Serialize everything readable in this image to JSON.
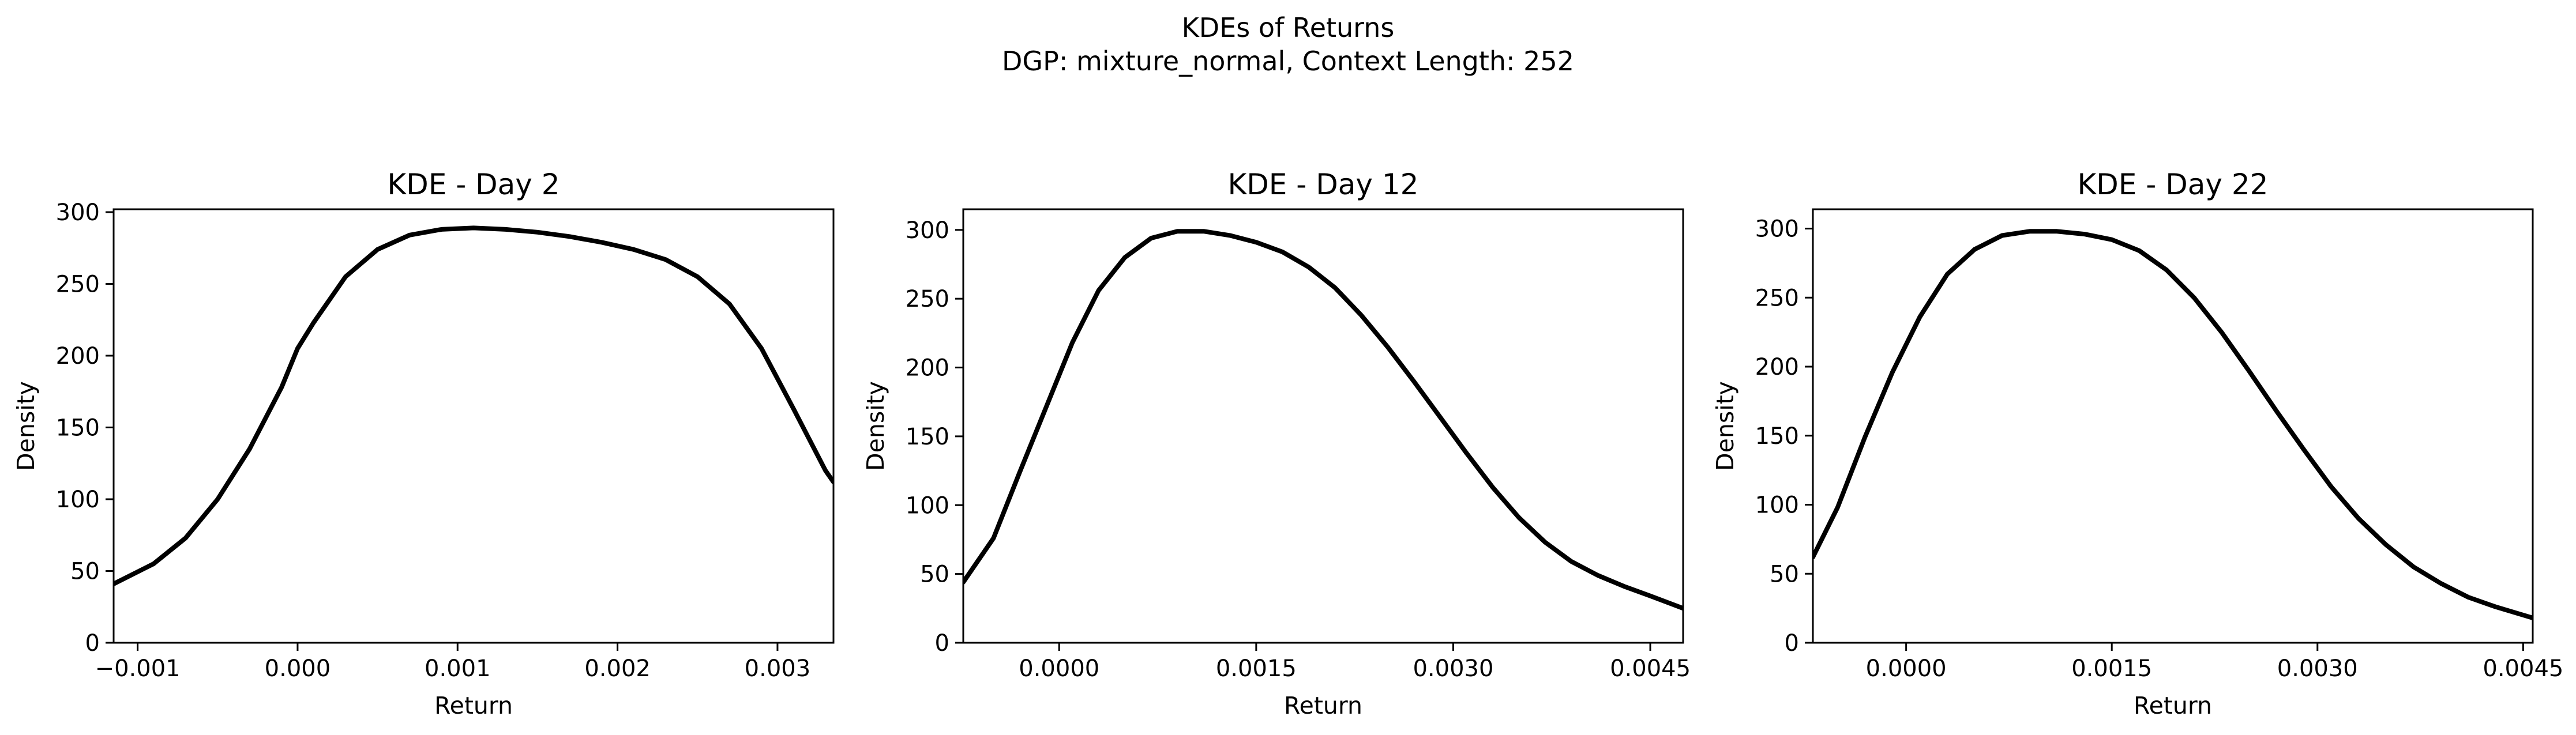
{
  "figure": {
    "title_line1": "KDEs of Returns",
    "title_line2": "DGP: mixture_normal, Context Length: 252"
  },
  "chart_data": [
    {
      "type": "line",
      "title": "KDE - Day 2",
      "xlabel": "Return",
      "ylabel": "Density",
      "xlim": [
        -0.00115,
        0.00335
      ],
      "ylim": [
        0,
        302
      ],
      "xticks": [
        -0.001,
        0.0,
        0.001,
        0.002,
        0.003
      ],
      "xtick_labels": [
        "−0.001",
        "0.000",
        "0.001",
        "0.002",
        "0.003"
      ],
      "yticks": [
        0,
        50,
        100,
        150,
        200,
        250,
        300
      ],
      "ytick_labels": [
        "0",
        "50",
        "100",
        "150",
        "200",
        "250",
        "300"
      ],
      "grid": false,
      "line_color": "#000000",
      "series": [
        {
          "x": [
            -0.00115,
            -0.0009,
            -0.0007,
            -0.0005,
            -0.0003,
            -0.0001,
            0.0,
            0.0001,
            0.0003,
            0.0005,
            0.0007,
            0.0009,
            0.0011,
            0.0013,
            0.0015,
            0.0017,
            0.0019,
            0.0021,
            0.0023,
            0.0025,
            0.0027,
            0.0029,
            0.0031,
            0.0033,
            0.00335
          ],
          "y": [
            41,
            55,
            73,
            100,
            135,
            178,
            205,
            223,
            255,
            274,
            284,
            288,
            289,
            288,
            286,
            283,
            279,
            274,
            267,
            255,
            236,
            205,
            163,
            120,
            112
          ]
        }
      ]
    },
    {
      "type": "line",
      "title": "KDE - Day 12",
      "xlabel": "Return",
      "ylabel": "Density",
      "xlim": [
        -0.00073,
        0.00475
      ],
      "ylim": [
        0,
        315
      ],
      "xticks": [
        0.0,
        0.0015,
        0.003,
        0.0045
      ],
      "xtick_labels": [
        "0.0000",
        "0.0015",
        "0.0030",
        "0.0045"
      ],
      "yticks": [
        0,
        50,
        100,
        150,
        200,
        250,
        300
      ],
      "ytick_labels": [
        "0",
        "50",
        "100",
        "150",
        "200",
        "250",
        "300"
      ],
      "grid": false,
      "line_color": "#000000",
      "series": [
        {
          "x": [
            -0.00073,
            -0.0005,
            -0.0003,
            -0.0001,
            0.0001,
            0.0003,
            0.0005,
            0.0007,
            0.0009,
            0.0011,
            0.0013,
            0.0015,
            0.0017,
            0.0019,
            0.0021,
            0.0023,
            0.0025,
            0.0027,
            0.0029,
            0.0031,
            0.0033,
            0.0035,
            0.0037,
            0.0039,
            0.0041,
            0.0043,
            0.0045,
            0.00475
          ],
          "y": [
            44,
            76,
            124,
            171,
            218,
            256,
            280,
            294,
            299,
            299,
            296,
            291,
            284,
            273,
            258,
            238,
            215,
            190,
            164,
            138,
            113,
            91,
            73,
            59,
            49,
            41,
            34,
            25
          ]
        }
      ]
    },
    {
      "type": "line",
      "title": "KDE - Day 22",
      "xlabel": "Return",
      "ylabel": "Density",
      "xlim": [
        -0.00068,
        0.00457
      ],
      "ylim": [
        0,
        314
      ],
      "xticks": [
        0.0,
        0.0015,
        0.003,
        0.0045
      ],
      "xtick_labels": [
        "0.0000",
        "0.0015",
        "0.0030",
        "0.0045"
      ],
      "yticks": [
        0,
        50,
        100,
        150,
        200,
        250,
        300
      ],
      "ytick_labels": [
        "0",
        "50",
        "100",
        "150",
        "200",
        "250",
        "300"
      ],
      "grid": false,
      "line_color": "#000000",
      "series": [
        {
          "x": [
            -0.00068,
            -0.0005,
            -0.0003,
            -0.0001,
            0.0001,
            0.0003,
            0.0005,
            0.0007,
            0.0009,
            0.0011,
            0.0013,
            0.0015,
            0.0017,
            0.0019,
            0.0021,
            0.0023,
            0.0025,
            0.0027,
            0.0029,
            0.0031,
            0.0033,
            0.0035,
            0.0037,
            0.0039,
            0.0041,
            0.0043,
            0.00457
          ],
          "y": [
            62,
            98,
            149,
            196,
            236,
            267,
            285,
            295,
            298,
            298,
            296,
            292,
            284,
            270,
            250,
            225,
            197,
            168,
            140,
            113,
            90,
            71,
            55,
            43,
            33,
            26,
            18
          ]
        }
      ]
    }
  ]
}
